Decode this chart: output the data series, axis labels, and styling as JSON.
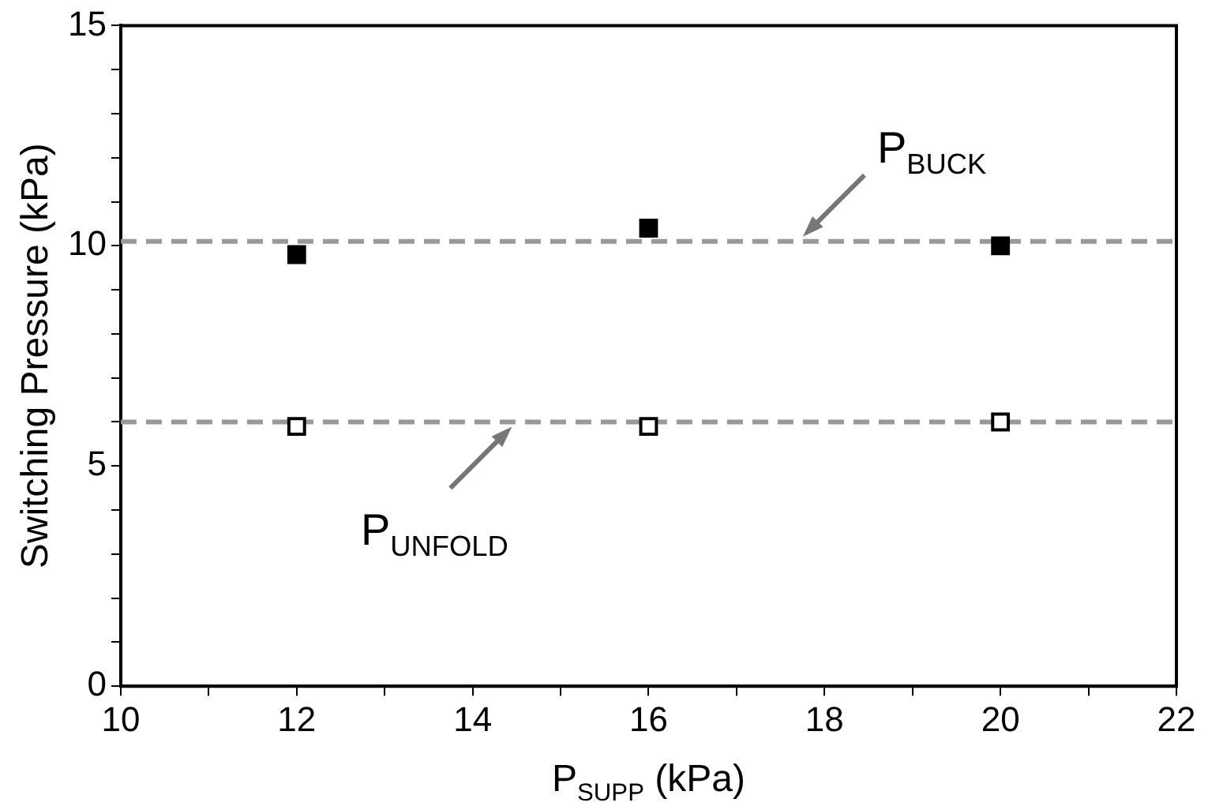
{
  "chart_data": {
    "type": "scatter",
    "xlabel": "P$_{SUPP}$ (kPa)",
    "ylabel": "Switching Pressure (kPa)",
    "series": [
      {
        "color": "#000000",
        "x": [
          12,
          16,
          20
        ],
        "values": [
          9.8,
          10.4,
          10.0
        ]
      },
      {
        "color": "#ffffff",
        "x": [
          12,
          16,
          20
        ],
        "values": [
          5.9,
          5.9,
          6.0
        ]
      }
    ],
    "marker": "square",
    "grid": false,
    "xlim": [
      10,
      22
    ],
    "xticks": [
      10,
      {
        "value": 11,
        "label": null
      },
      12,
      {
        "value": 13,
        "label": null
      },
      14,
      {
        "value": 15,
        "label": null
      },
      16,
      {
        "value": 17,
        "label": null
      },
      18,
      {
        "value": 19,
        "label": null
      },
      20,
      {
        "value": 21,
        "label": null
      },
      22
    ],
    "ylim": [
      0,
      15
    ],
    "yticks": [
      0,
      {
        "value": 1,
        "label": null
      },
      {
        "value": 2,
        "label": null
      },
      {
        "value": 3,
        "label": null
      },
      {
        "value": 4,
        "label": null
      },
      5,
      {
        "value": 6,
        "label": null
      },
      {
        "value": 7,
        "label": null
      },
      {
        "value": 8,
        "label": null
      },
      {
        "value": 9,
        "label": null
      },
      10,
      {
        "value": 11,
        "label": null
      },
      {
        "value": 12,
        "label": null
      },
      {
        "value": 13,
        "label": null
      },
      {
        "value": 14,
        "label": null
      },
      15
    ],
    "ref_lines": [
      {
        "axis": "y",
        "value": 10.1,
        "color": "#999999",
        "line_style": "dashed"
      },
      {
        "axis": "y",
        "value": 6.0,
        "color": "#999999",
        "line_style": "dashed"
      }
    ],
    "annotations": [
      {
        "text": "P$_{BUCK}$",
        "x": 17.7,
        "y": 10.1
      },
      {
        "text": "P$_{UNFOLD}$",
        "x": 14.5,
        "y": 6.0
      }
    ]
  }
}
